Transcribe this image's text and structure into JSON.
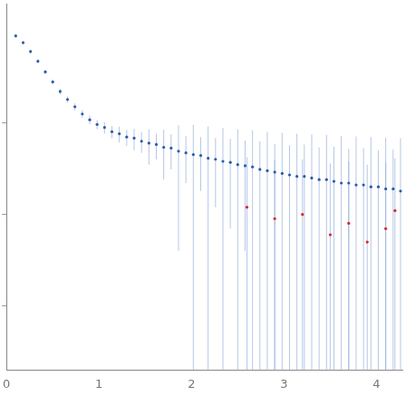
{
  "chart_data": {
    "type": "scatter",
    "log": "y",
    "grid": false,
    "tick_labels": "x",
    "xlim": [
      0,
      4.28
    ],
    "xticks": [
      0,
      1,
      2,
      3,
      4
    ],
    "ylim": [
      0.02,
      200
    ],
    "yticks": [
      0.1,
      1,
      10
    ],
    "series": [
      {
        "color": "#2a5caa",
        "marker": "circle",
        "x": [
          0.1,
          0.18,
          0.26,
          0.34,
          0.42,
          0.5,
          0.58,
          0.66,
          0.74,
          0.82,
          0.9,
          0.98,
          1.06,
          1.14,
          1.22,
          1.3,
          1.38,
          1.46,
          1.54,
          1.62,
          1.7,
          1.78,
          1.86,
          1.94,
          2.02,
          2.1,
          2.18,
          2.26,
          2.34,
          2.42,
          2.5,
          2.58,
          2.66,
          2.74,
          2.82,
          2.9,
          2.98,
          3.06,
          3.14,
          3.22,
          3.3,
          3.38,
          3.46,
          3.54,
          3.62,
          3.7,
          3.78,
          3.86,
          3.94,
          4.02,
          4.1,
          4.18,
          4.26
        ],
        "values": [
          89,
          75,
          60,
          47,
          36,
          28,
          22,
          18,
          15,
          12.5,
          10.8,
          9.6,
          8.9,
          8.0,
          7.6,
          7.0,
          6.8,
          6.3,
          6.0,
          5.8,
          5.4,
          5.3,
          4.9,
          4.7,
          4.5,
          4.4,
          4.1,
          4.0,
          3.8,
          3.7,
          3.5,
          3.4,
          3.3,
          3.1,
          3.0,
          2.9,
          2.8,
          2.7,
          2.6,
          2.6,
          2.5,
          2.4,
          2.4,
          2.3,
          2.2,
          2.2,
          2.1,
          2.1,
          2.0,
          2.0,
          1.9,
          1.9,
          1.8
        ],
        "errors": [
          4,
          3,
          3,
          2.5,
          2,
          1.8,
          1.5,
          1.4,
          1.3,
          1.2,
          1.2,
          1.1,
          1.3,
          1.2,
          1.5,
          1.4,
          1.8,
          1.6,
          2.5,
          1.8,
          3,
          2.2,
          4.5,
          2.5,
          5,
          2.6,
          5,
          2.8,
          5,
          3,
          5,
          3,
          5,
          3.2,
          5,
          3,
          5,
          3,
          5,
          3.2,
          5,
          3,
          5,
          3.2,
          5,
          3,
          5,
          3.2,
          5,
          3,
          5,
          3.2,
          5
        ]
      },
      {
        "color": "#d62728",
        "marker": "circle",
        "x": [
          2.6,
          2.9,
          3.2,
          3.5,
          3.7,
          3.9,
          4.1,
          4.2
        ],
        "values": [
          1.2,
          0.9,
          1.0,
          0.6,
          0.8,
          0.5,
          0.7,
          1.1
        ],
        "errors": [
          3,
          3,
          3,
          3,
          3,
          3,
          3,
          3
        ]
      }
    ]
  }
}
